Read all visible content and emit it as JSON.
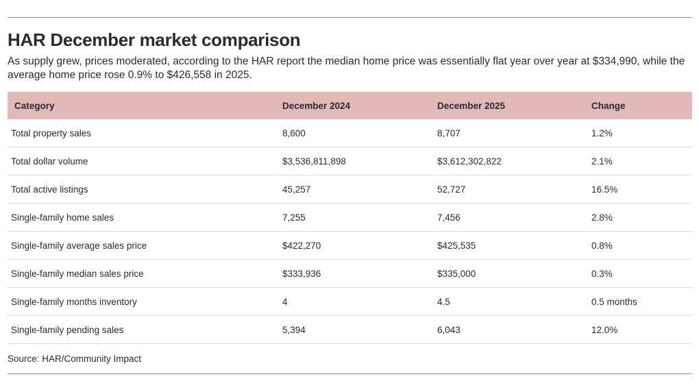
{
  "header": {
    "title": "HAR December market comparison",
    "subtitle": "As supply grew, prices moderated, according to the HAR report the median home price was essentially flat year over year at $334,990, while the average home price rose 0.9% to $426,558 in 2025."
  },
  "table": {
    "columns": [
      "Category",
      "December 2024",
      "December 2025",
      "Change"
    ],
    "rows": [
      [
        "Total property sales",
        "8,600",
        "8,707",
        "1.2%"
      ],
      [
        "Total dollar volume",
        "$3,536,811,898",
        "$3,612,302,822",
        "2.1%"
      ],
      [
        "Total active listings",
        "45,257",
        "52,727",
        "16.5%"
      ],
      [
        "Single-family home sales",
        "7,255",
        "7,456",
        "2.8%"
      ],
      [
        "Single-family average sales price",
        "$422,270",
        "$425,535",
        "0.8%"
      ],
      [
        "Single-family median sales price",
        "$333,936",
        "$335,000",
        "0.3%"
      ],
      [
        "Single-family months inventory",
        "4",
        "4.5",
        "0.5 months"
      ],
      [
        "Single-family pending sales",
        "5,394",
        "6,043",
        "12.0%"
      ]
    ]
  },
  "footer": {
    "source": "Source: HAR/Community Impact"
  },
  "colors": {
    "header_row_bg": "#e2b8b8",
    "text": "#2b2b2b",
    "rule": "#8a8a8a"
  }
}
